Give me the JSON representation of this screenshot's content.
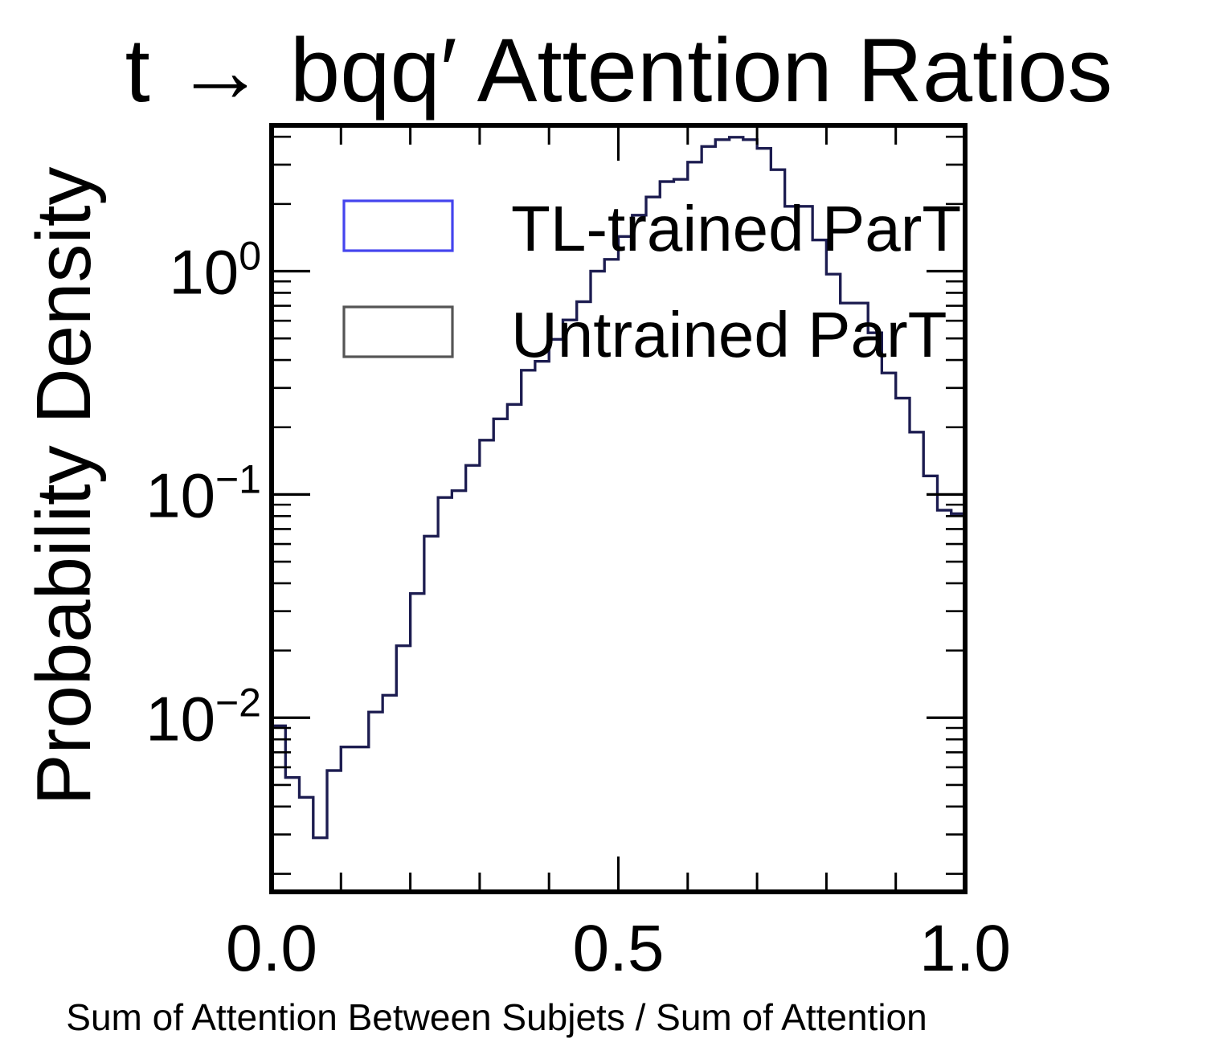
{
  "chart_data": {
    "type": "histogram",
    "title": "t → bqq′ Attention Ratios",
    "xlabel": "Sum of Attention Between Subjets / Sum of Attention",
    "ylabel": "Probability Density",
    "xlim": [
      0,
      1
    ],
    "ylim": [
      0.00166,
      4.5
    ],
    "yscale": "log",
    "grid": false,
    "legend_position": "top-left",
    "x_ticks": [
      {
        "value": 0.0,
        "label": "0.0"
      },
      {
        "value": 0.5,
        "label": "0.5"
      },
      {
        "value": 1.0,
        "label": "1.0"
      }
    ],
    "y_ticks": [
      {
        "value": 1,
        "base": "10",
        "exp": "0"
      },
      {
        "value": 0.1,
        "base": "10",
        "exp": "−1"
      },
      {
        "value": 0.01,
        "base": "10",
        "exp": "−2"
      }
    ],
    "bin_edges": [
      0.0,
      0.02,
      0.04,
      0.06,
      0.08,
      0.1,
      0.12,
      0.14,
      0.16,
      0.18,
      0.2,
      0.22,
      0.24,
      0.26,
      0.28,
      0.3,
      0.32,
      0.34,
      0.36,
      0.38,
      0.4,
      0.42,
      0.44,
      0.46,
      0.48,
      0.5,
      0.52,
      0.54,
      0.56,
      0.58,
      0.6,
      0.62,
      0.64,
      0.66,
      0.68,
      0.7,
      0.72,
      0.74,
      0.76,
      0.78,
      0.8,
      0.82,
      0.84,
      0.86,
      0.88,
      0.9,
      0.92,
      0.94,
      0.96,
      0.98,
      1.0
    ],
    "series": [
      {
        "name": "TL-trained ParT",
        "color": "#4444ee",
        "style": "step",
        "values": [
          0.0092,
          0.0054,
          0.0044,
          0.0029,
          0.0058,
          0.0074,
          0.0074,
          0.0106,
          0.0126,
          0.021,
          0.036,
          0.065,
          0.097,
          0.104,
          0.135,
          0.175,
          0.218,
          0.253,
          0.36,
          0.395,
          0.495,
          0.605,
          0.73,
          1.0,
          1.13,
          1.43,
          1.78,
          2.15,
          2.52,
          2.58,
          3.08,
          3.62,
          3.88,
          3.98,
          3.88,
          3.55,
          2.85,
          1.95,
          1.95,
          1.38,
          0.97,
          0.72,
          0.72,
          0.53,
          0.35,
          0.27,
          0.19,
          0.121,
          0.085,
          0.082
        ]
      },
      {
        "name": "Untrained ParT",
        "color": "#555555",
        "style": "step",
        "values": [
          0.0092,
          0.0054,
          0.0044,
          0.0029,
          0.0058,
          0.0074,
          0.0074,
          0.0106,
          0.0126,
          0.021,
          0.036,
          0.065,
          0.097,
          0.104,
          0.135,
          0.175,
          0.218,
          0.253,
          0.36,
          0.395,
          0.495,
          0.605,
          0.73,
          1.0,
          1.13,
          1.43,
          1.78,
          2.15,
          2.52,
          2.58,
          3.08,
          3.62,
          3.88,
          3.98,
          3.88,
          3.55,
          2.85,
          1.95,
          1.95,
          1.38,
          0.97,
          0.72,
          0.72,
          0.53,
          0.35,
          0.27,
          0.19,
          0.121,
          0.085,
          0.082
        ]
      }
    ],
    "overlap_color": "#1c1c50"
  }
}
